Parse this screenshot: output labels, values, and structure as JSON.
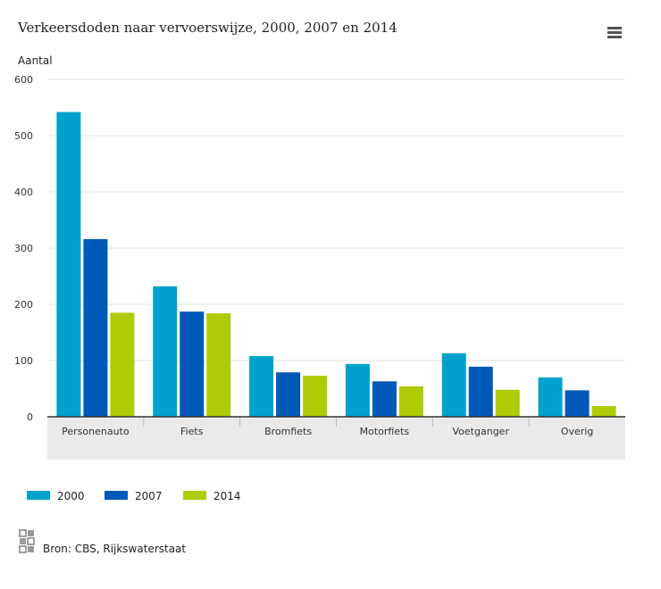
{
  "toolbar": {
    "menu_icon": "hamburger-menu-icon"
  },
  "source": {
    "icon": "cbs-logo-icon",
    "text": "Bron: CBS, Rijkswaterstaat"
  },
  "chart_data": {
    "type": "bar",
    "title": "Verkeersdoden naar vervoerswijze, 2000, 2007 en 2014",
    "xlabel": "",
    "ylabel": "Aantal",
    "ylim": [
      0,
      600
    ],
    "yticks": [
      0,
      100,
      200,
      300,
      400,
      500,
      600
    ],
    "grid": true,
    "legend_position": "bottom-left",
    "categories": [
      "Personenauto",
      "Fiets",
      "Bromfiets",
      "Motorfiets",
      "Voetganger",
      "Overig"
    ],
    "series": [
      {
        "name": "2000",
        "color": "#00a1cd",
        "values": [
          542,
          232,
          108,
          94,
          113,
          70
        ]
      },
      {
        "name": "2007",
        "color": "#0058b8",
        "values": [
          316,
          187,
          79,
          63,
          89,
          47
        ]
      },
      {
        "name": "2014",
        "color": "#afcb05",
        "values": [
          185,
          184,
          73,
          54,
          48,
          19
        ]
      }
    ]
  }
}
